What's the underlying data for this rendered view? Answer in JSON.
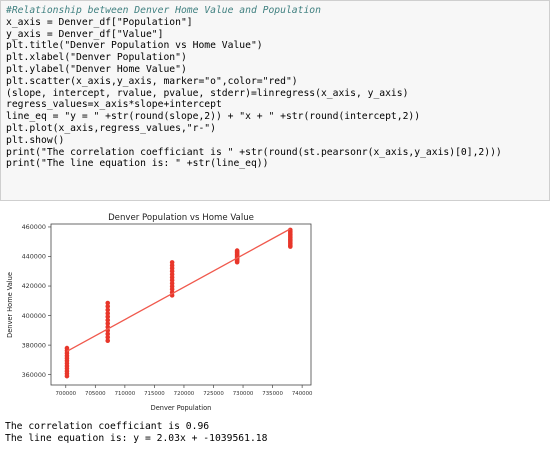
{
  "code_lines": [
    "#Relationship between Denver Home Value and Population",
    "x_axis = Denver_df[\"Population\"]",
    "y_axis = Denver_df[\"Value\"]",
    "plt.title(\"Denver Population vs Home Value\")",
    "plt.xlabel(\"Denver Population\")",
    "plt.ylabel(\"Denver Home Value\")",
    "plt.scatter(x_axis,y_axis, marker=\"o\",color=\"red\")",
    "(slope, intercept, rvalue, pvalue, stderr)=linregress(x_axis, y_axis)",
    "regress_values=x_axis*slope+intercept",
    "line_eq = \"y = \" +str(round(slope,2)) + \"x + \" +str(round(intercept,2))",
    "plt.plot(x_axis,regress_values,\"r-\")",
    "plt.show()",
    "print(\"The correlation coefficiant is \" +str(round(st.pearsonr(x_axis,y_axis)[0],2)))",
    "print(\"The line equation is: \" +str(line_eq))"
  ],
  "output_lines": [
    "The correlation coefficiant is 0.96",
    "The line equation is: y = 2.03x + -1039561.18"
  ],
  "colors": {
    "cell_bg": "#f7f7f7",
    "cell_border": "#cfcfcf",
    "points": "#e8362a",
    "line": "#f0594d"
  },
  "chart_data": {
    "type": "scatter",
    "title": "Denver Population vs Home Value",
    "xlabel": "Denver Population",
    "ylabel": "Denver Home Value",
    "xlim": [
      697500,
      741500
    ],
    "ylim": [
      353000,
      462000
    ],
    "x_ticks": [
      700000,
      705000,
      710000,
      715000,
      720000,
      725000,
      730000,
      735000,
      740000
    ],
    "y_ticks": [
      360000,
      380000,
      400000,
      420000,
      440000,
      460000
    ],
    "x_tick_labels": [
      "700000",
      "705000",
      "710000",
      "715000",
      "720000",
      "725000",
      "730000",
      "735000",
      "740000"
    ],
    "y_tick_labels": [
      "360000",
      "380000",
      "400000",
      "420000",
      "440000",
      "460000"
    ],
    "grid": false,
    "series": [
      {
        "kind": "points",
        "x": [
          700200,
          700200,
          700200,
          700200,
          700200,
          700200,
          700200,
          700200,
          700200,
          700200,
          700200,
          700200,
          707100,
          707100,
          707100,
          707100,
          707100,
          707100,
          707100,
          707100,
          707100,
          707100,
          707100,
          707100,
          718000,
          718000,
          718000,
          718000,
          718000,
          718000,
          718000,
          718000,
          718000,
          718000,
          718000,
          718000,
          729000,
          729000,
          729000,
          729000,
          729000,
          729000,
          729000,
          729000,
          729000,
          729000,
          729000,
          729000,
          738000,
          738000,
          738000,
          738000,
          738000,
          738000,
          738000,
          738000,
          738000,
          738000,
          738000,
          738000
        ],
        "y": [
          378000,
          376300,
          374600,
          372800,
          371100,
          369400,
          367600,
          365900,
          364200,
          362400,
          360700,
          359000,
          408500,
          406200,
          403900,
          401500,
          399200,
          396900,
          394600,
          392300,
          389900,
          387600,
          385300,
          383000,
          436000,
          434000,
          432000,
          430000,
          427900,
          425900,
          423900,
          421800,
          419800,
          417800,
          415700,
          413700,
          444000,
          443300,
          442600,
          441800,
          441100,
          440400,
          439700,
          439000,
          438200,
          437500,
          436800,
          436100,
          458000,
          457000,
          456000,
          454900,
          453900,
          452900,
          451800,
          450800,
          449800,
          448800,
          447700,
          446700
        ]
      },
      {
        "kind": "regression-line",
        "x": [
          700200,
          738000
        ],
        "y": [
          375800,
          458700
        ]
      }
    ]
  }
}
